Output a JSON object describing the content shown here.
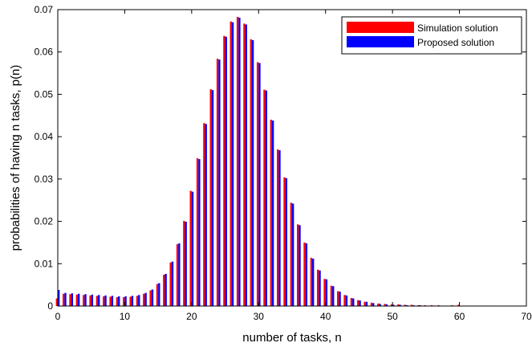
{
  "chart_data": {
    "type": "bar",
    "title": "",
    "xlabel": "number of tasks, n",
    "ylabel": "probabilities of having n tasks, p(n)",
    "xlim": [
      0,
      70
    ],
    "ylim": [
      0,
      0.07
    ],
    "xticks": [
      "0",
      "10",
      "20",
      "30",
      "40",
      "50",
      "60",
      "70"
    ],
    "yticks": [
      "0",
      "0.01",
      "0.02",
      "0.03",
      "0.04",
      "0.05",
      "0.06",
      "0.07"
    ],
    "grid": false,
    "legend_position": "top-right",
    "x": [
      0,
      1,
      2,
      3,
      4,
      5,
      6,
      7,
      8,
      9,
      10,
      11,
      12,
      13,
      14,
      15,
      16,
      17,
      18,
      19,
      20,
      21,
      22,
      23,
      24,
      25,
      26,
      27,
      28,
      29,
      30,
      31,
      32,
      33,
      34,
      35,
      36,
      37,
      38,
      39,
      40,
      41,
      42,
      43,
      44,
      45,
      46,
      47,
      48,
      49,
      50,
      51,
      52,
      53,
      54,
      55,
      56,
      57,
      58,
      59,
      60,
      61,
      62,
      63,
      64,
      65
    ],
    "series": [
      {
        "name": "Simulation solution",
        "color": "#ff0000",
        "values": [
          0.0018,
          0.0029,
          0.0028,
          0.0027,
          0.0026,
          0.0025,
          0.0024,
          0.0023,
          0.0022,
          0.0021,
          0.0021,
          0.0022,
          0.0024,
          0.0029,
          0.0037,
          0.0052,
          0.0074,
          0.0103,
          0.0146,
          0.0201,
          0.0272,
          0.0349,
          0.0432,
          0.0512,
          0.0584,
          0.0638,
          0.0672,
          0.0683,
          0.0667,
          0.063,
          0.0576,
          0.0511,
          0.044,
          0.037,
          0.0304,
          0.0244,
          0.0193,
          0.015,
          0.0114,
          0.0086,
          0.0064,
          0.0048,
          0.0035,
          0.0026,
          0.0019,
          0.0014,
          0.001,
          0.0008,
          0.0006,
          0.0005,
          0.0004,
          0.0004,
          0.0003,
          0.0003,
          0.0002,
          0.0002,
          0.0002,
          0.0002,
          0.0001,
          0.0002,
          0.0003,
          0.0001,
          0.0001,
          0.0001,
          0.0001,
          0.0001
        ]
      },
      {
        "name": "Proposed solution",
        "color": "#0000ff",
        "values": [
          0.0038,
          0.0031,
          0.003,
          0.0029,
          0.0028,
          0.0027,
          0.0026,
          0.0025,
          0.0024,
          0.0023,
          0.0023,
          0.0024,
          0.0026,
          0.0031,
          0.0039,
          0.0054,
          0.0076,
          0.0105,
          0.0148,
          0.0199,
          0.027,
          0.0347,
          0.043,
          0.051,
          0.0582,
          0.0636,
          0.067,
          0.0681,
          0.0665,
          0.0628,
          0.0574,
          0.0509,
          0.0438,
          0.0368,
          0.0302,
          0.0242,
          0.0191,
          0.0148,
          0.0112,
          0.0084,
          0.0063,
          0.0047,
          0.0034,
          0.0025,
          0.0018,
          0.0013,
          0.001,
          0.0007,
          0.0005,
          0.0004,
          0.0003,
          0.0003,
          0.0002,
          0.0002,
          0.0002,
          0.0001,
          0.0001,
          0.0001,
          0.0001,
          0.0001,
          0.0001,
          0.0001,
          0.0001,
          0.0001,
          0.0001,
          0.0001
        ]
      }
    ]
  }
}
